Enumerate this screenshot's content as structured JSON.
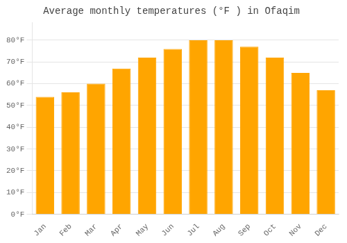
{
  "chart_data": {
    "type": "bar",
    "title": "Average monthly temperatures (°F ) in Ofaqim",
    "categories": [
      "Jan",
      "Feb",
      "Mar",
      "Apr",
      "May",
      "Jun",
      "Jul",
      "Aug",
      "Sep",
      "Oct",
      "Nov",
      "Dec"
    ],
    "values": [
      54,
      56,
      60,
      67,
      72,
      76,
      80,
      80,
      77,
      72,
      65,
      57
    ],
    "color": "#FFA500",
    "ylim": [
      0,
      88
    ],
    "yticks": [
      {
        "value": 0,
        "label": "0°F"
      },
      {
        "value": 10,
        "label": "10°F"
      },
      {
        "value": 20,
        "label": "20°F"
      },
      {
        "value": 30,
        "label": "30°F"
      },
      {
        "value": 40,
        "label": "40°F"
      },
      {
        "value": 50,
        "label": "50°F"
      },
      {
        "value": 60,
        "label": "60°F"
      },
      {
        "value": 70,
        "label": "70°F"
      },
      {
        "value": 80,
        "label": "80°F"
      }
    ],
    "grid": true
  }
}
